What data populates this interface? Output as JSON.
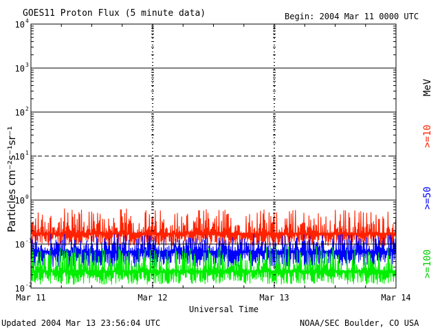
{
  "header": {
    "title": "GOES11 Proton Flux (5 minute data)",
    "begin": "Begin: 2004 Mar 11 0000 UTC"
  },
  "footer": {
    "updated": "Updated 2004 Mar 13 23:56:04 UTC",
    "source": "NOAA/SEC Boulder, CO USA"
  },
  "chart_data": {
    "type": "line",
    "title": "GOES11 Proton Flux (5 minute data)",
    "xlabel": "Universal Time",
    "ylabel": "Particles cm⁻²s⁻¹sr⁻¹",
    "y_scale": "log",
    "ylim": [
      0.01,
      10000
    ],
    "xlim": [
      "2004-03-11",
      "2004-03-14"
    ],
    "x_ticks": [
      "Mar 11",
      "Mar 12",
      "Mar 13",
      "Mar 14"
    ],
    "y_ticks": [
      {
        "value": 0.01,
        "base": "10",
        "exp": "-2"
      },
      {
        "value": 0.1,
        "base": "10",
        "exp": "-1"
      },
      {
        "value": 1,
        "base": "10",
        "exp": "0"
      },
      {
        "value": 10,
        "base": "10",
        "exp": "1"
      },
      {
        "value": 100,
        "base": "10",
        "exp": "2"
      },
      {
        "value": 1000,
        "base": "10",
        "exp": "3"
      },
      {
        "value": 10000,
        "base": "10",
        "exp": "4"
      }
    ],
    "reference_lines": [
      {
        "value": 10,
        "style": "dashed"
      },
      {
        "value": 1,
        "style": "solid"
      },
      {
        "value": 100,
        "style": "solid"
      },
      {
        "value": 1000,
        "style": "solid"
      }
    ],
    "threshold_line": {
      "value": 0.1,
      "color": "#000000"
    },
    "grid": false,
    "units_label": "MeV",
    "series": [
      {
        "name": ">=10",
        "color": "#ff2200",
        "min": 0.09,
        "max": 0.65,
        "typical": 0.18
      },
      {
        "name": ">=50",
        "color": "#0000ff",
        "min": 0.03,
        "max": 0.17,
        "typical": 0.07
      },
      {
        "name": ">=100",
        "color": "#00ee00",
        "min": 0.012,
        "max": 0.09,
        "typical": 0.025
      }
    ]
  }
}
